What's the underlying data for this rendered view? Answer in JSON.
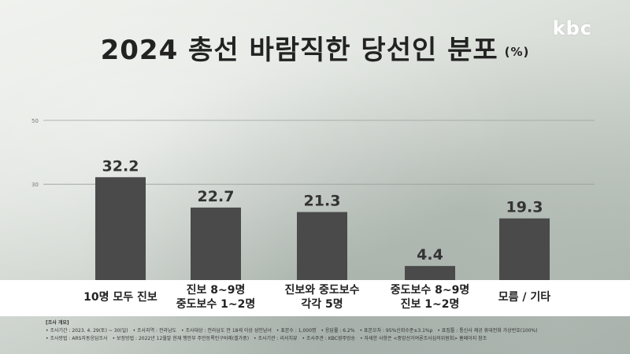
{
  "header": {
    "title": "2024 총선 바람직한 당선인 분포",
    "unit": "(%)",
    "logo": "kbc"
  },
  "chart_data": {
    "type": "bar",
    "title": "2024 총선 바람직한 당선인 분포",
    "ylabel": "",
    "xlabel": "",
    "ylim": [
      0,
      50
    ],
    "yticks": [
      30,
      50
    ],
    "categories": [
      [
        "10명 모두 진보"
      ],
      [
        "진보 8~9명",
        "중도보수 1~2명"
      ],
      [
        "진보와 중도보수",
        "각각 5명"
      ],
      [
        "중도보수 8~9명",
        "진보 1~2명"
      ],
      [
        "모름 / 기타"
      ]
    ],
    "values": [
      32.2,
      22.7,
      21.3,
      4.4,
      19.3
    ],
    "value_labels": [
      "32.2",
      "22.7",
      "21.3",
      "4.4",
      "19.3"
    ],
    "grid": true,
    "bar_color": "#4a4a4a"
  },
  "footer": {
    "title": "[조사 개요]",
    "line1": [
      "• 조사기간 : 2023. 4. 29(토) ~ 30(일)",
      "• 조사지역 : 전라남도",
      "• 조사대상 : 전라남도 만 18세 이상 성인남녀",
      "• 표본수 : 1,000명",
      "• 응답률 : 6.2%",
      "• 표본오차 : 95%신뢰수준±3.1%p",
      "• 표집틀 : 통신사 제공 휴대전화 가상번호(100%)"
    ],
    "line2": [
      "• 조사방법 : ARS자동응답조사",
      "• 보정방법 : 2022년 12월말 현재 행안부 주민등록인구비례(셀가중)",
      "• 조사기관 : 리서치뷰",
      "• 조사주관 : KBC광주방송",
      "• 자세한 사항은 <중앙선거여론조사심의위원회> 홈페이지 참조"
    ]
  }
}
